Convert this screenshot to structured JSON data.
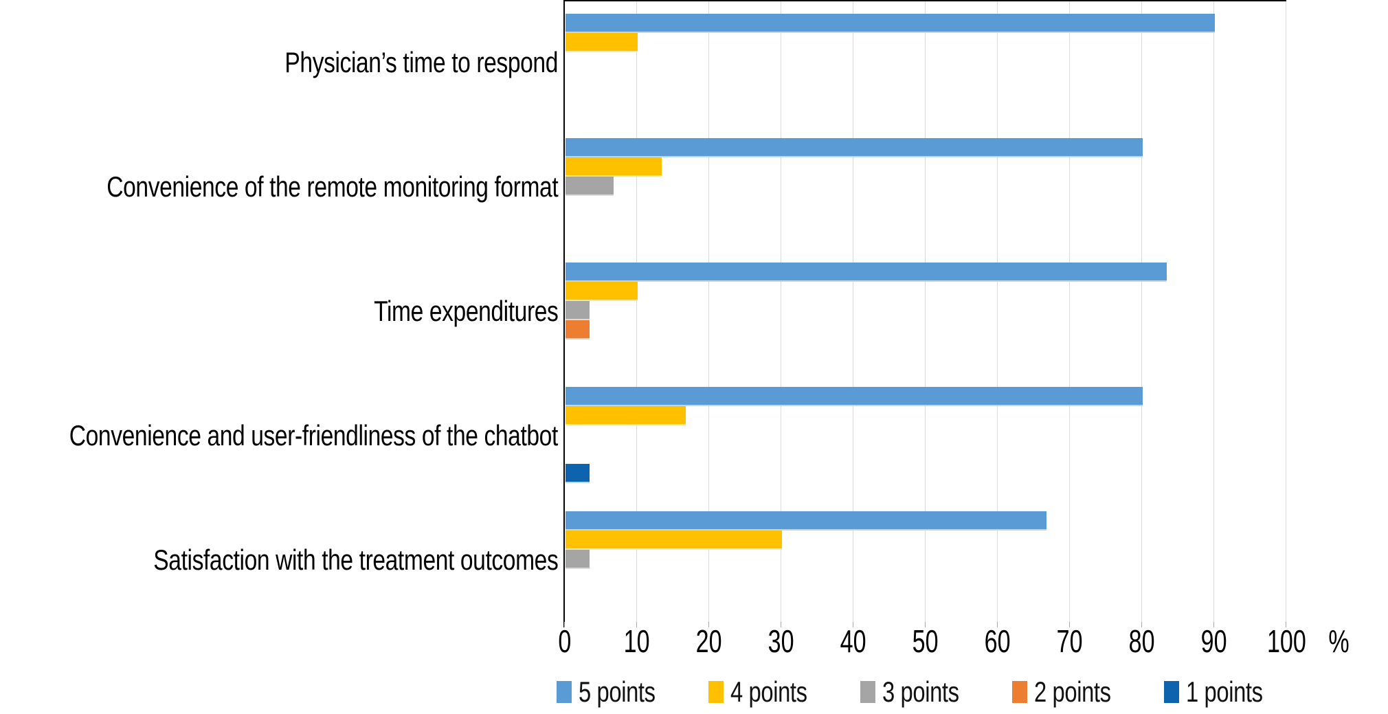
{
  "chart_data": {
    "type": "bar",
    "orientation": "horizontal",
    "categories": [
      "Physician’s time to respond",
      "Convenience of the remote monitoring format",
      "Time expenditures",
      "Convenience and user-friendliness of the chatbot",
      "Satisfaction with the treatment outcomes"
    ],
    "series": [
      {
        "name": "5 points",
        "color": "#5B9BD5",
        "border_color": "#BDD7EE",
        "values": [
          90,
          80,
          83.3,
          80,
          66.7
        ]
      },
      {
        "name": "4 points",
        "color": "#FFC000",
        "border_color": "#FFE699",
        "values": [
          10,
          13.3,
          10,
          16.7,
          30
        ]
      },
      {
        "name": "3 points",
        "color": "#A5A5A5",
        "border_color": "#DBDBDB",
        "values": [
          0,
          6.7,
          3.3,
          0,
          3.3
        ]
      },
      {
        "name": "2 points",
        "color": "#ED7D31",
        "border_color": "#F8CBAD",
        "values": [
          0,
          0,
          3.3,
          0,
          0
        ]
      },
      {
        "name": "1 points",
        "color": "#0E63AE",
        "border_color": "#BDD7EE",
        "values": [
          0,
          0,
          0,
          3.3,
          0
        ]
      }
    ],
    "x_axis": {
      "ticks": [
        0,
        10,
        20,
        30,
        40,
        50,
        60,
        70,
        80,
        90,
        100
      ],
      "unit": "%",
      "range": [
        0,
        100
      ]
    },
    "grid": true,
    "legend_position": "bottom",
    "legend_entries": [
      "5 points",
      "4 points",
      "3 points",
      "2 points",
      "1 points"
    ],
    "axis_colors": {
      "gridline": "#D9D9D9",
      "axis_line": "#000000",
      "text": "#000000"
    }
  }
}
